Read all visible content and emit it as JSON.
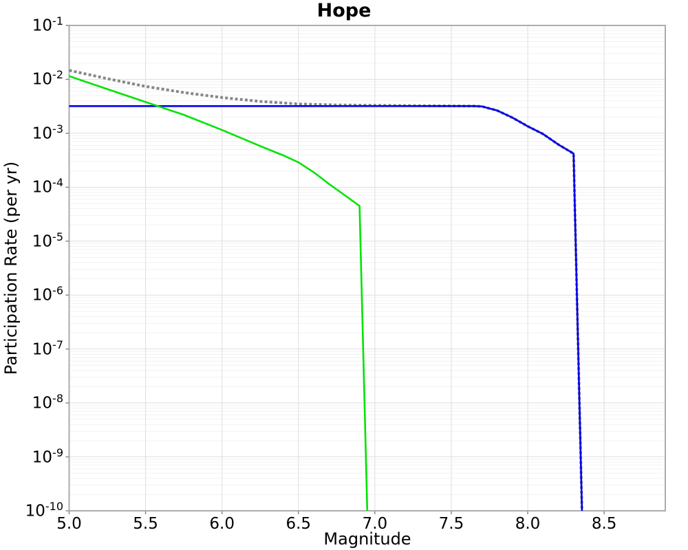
{
  "chart_data": {
    "type": "line",
    "title": "Hope",
    "xlabel": "Magnitude",
    "ylabel": "Participation Rate (per yr)",
    "xlim": [
      5.0,
      8.9
    ],
    "ylim_exp": [
      -10,
      -1
    ],
    "x_tick_values": [
      5.0,
      5.5,
      6.0,
      6.5,
      7.0,
      7.5,
      8.0,
      8.5
    ],
    "x_tick_labels": [
      "5.0",
      "5.5",
      "6.0",
      "6.5",
      "7.0",
      "7.5",
      "8.0",
      "8.5"
    ],
    "y_tick_exponents": [
      -1,
      -2,
      -3,
      -4,
      -5,
      -6,
      -7,
      -8,
      -9,
      -10
    ],
    "y_tick_base": "10",
    "grid": "major decade + minor log gridlines, vertical gridlines each 0.5 magnitude",
    "legend": "none",
    "series": [
      {
        "name": "gray-dotted",
        "color": "#878787",
        "line_style": "dotted",
        "line_width": 4,
        "points": [
          [
            5.0,
            0.0147
          ],
          [
            5.25,
            0.0103
          ],
          [
            5.5,
            0.0074
          ],
          [
            5.75,
            0.0057
          ],
          [
            6.0,
            0.0046
          ],
          [
            6.25,
            0.0039
          ],
          [
            6.5,
            0.0035
          ],
          [
            6.75,
            0.00335
          ],
          [
            7.0,
            0.0033
          ],
          [
            7.25,
            0.00325
          ],
          [
            7.65,
            0.0032
          ],
          [
            7.7,
            0.00315
          ],
          [
            7.8,
            0.00265
          ],
          [
            7.9,
            0.00195
          ],
          [
            8.0,
            0.00135
          ],
          [
            8.1,
            0.00097
          ],
          [
            8.2,
            0.00062
          ],
          [
            8.3,
            0.00042
          ],
          [
            8.355,
            1e-10
          ]
        ]
      },
      {
        "name": "blue-solid",
        "color": "#0000f0",
        "line_style": "solid",
        "line_width": 2.6,
        "points": [
          [
            5.0,
            0.0032
          ],
          [
            7.65,
            0.0032
          ],
          [
            7.7,
            0.00315
          ],
          [
            7.8,
            0.00265
          ],
          [
            7.9,
            0.00195
          ],
          [
            8.0,
            0.00135
          ],
          [
            8.1,
            0.00097
          ],
          [
            8.2,
            0.00062
          ],
          [
            8.3,
            0.00042
          ],
          [
            8.355,
            1e-10
          ]
        ]
      },
      {
        "name": "green-solid",
        "color": "#00e300",
        "line_style": "solid",
        "line_width": 2.6,
        "points": [
          [
            5.0,
            0.0115
          ],
          [
            5.25,
            0.0066
          ],
          [
            5.5,
            0.0038
          ],
          [
            5.75,
            0.0022
          ],
          [
            6.0,
            0.00115
          ],
          [
            6.25,
            0.00058
          ],
          [
            6.4,
            0.00039
          ],
          [
            6.5,
            0.00029
          ],
          [
            6.6,
            0.00019
          ],
          [
            6.7,
            0.000115
          ],
          [
            6.8,
            7.2e-05
          ],
          [
            6.9,
            4.5e-05
          ],
          [
            6.95,
            1e-10
          ]
        ]
      }
    ],
    "colors": {
      "background": "#ffffff",
      "frame": "#a3a3a3",
      "grid_major": "#dedede",
      "grid_minor": "#f1f1f1",
      "tick": "#808080",
      "text": "#000000"
    }
  }
}
